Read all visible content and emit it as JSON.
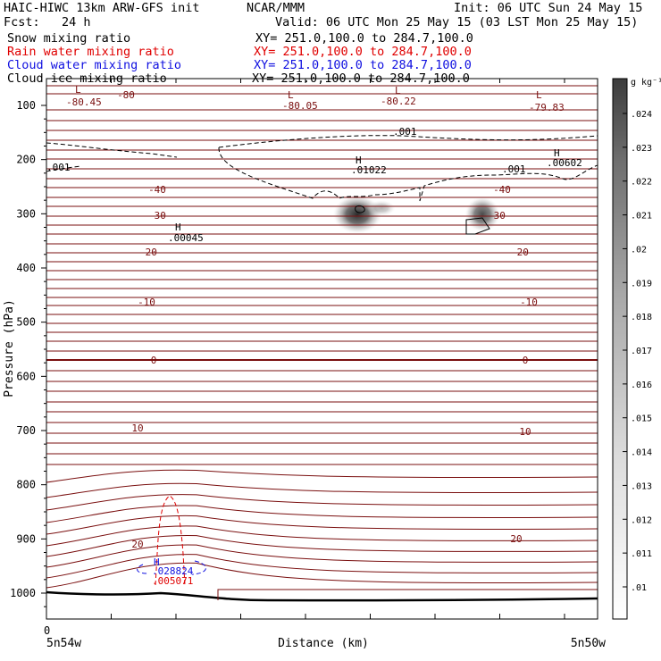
{
  "header": {
    "model": "HAIC-HIWC 13km ARW-GFS init",
    "org": "NCAR/MMM",
    "init": "Init: 06 UTC Sun 24 May 15",
    "fcst": "Fcst:   24 h",
    "valid": "Valid: 06 UTC Mon 25 May 15 (03 LST Mon 25 May 15)"
  },
  "fields": [
    {
      "label": "Snow mixing ratio",
      "xy": "XY= 251.0,100.0 to 284.7,100.0",
      "color": "#000000"
    },
    {
      "label": "Rain water mixing ratio",
      "xy": "XY= 251.0,100.0 to 284.7,100.0",
      "color": "#e00000"
    },
    {
      "label": "Cloud water mixing ratio",
      "xy": "XY= 251.0,100.0 to 284.7,100.0",
      "color": "#1010e0"
    },
    {
      "label": "Cloud ice mixing ratio",
      "xy": "XY= 251.0,100.0 to 284.7,100.0",
      "color": "#000000"
    }
  ],
  "chart_data": {
    "type": "contour",
    "ylabel": "Pressure (hPa)",
    "xlabel": "Distance (km)",
    "x_left_label": "5n54w",
    "x_right_label": "5n50w",
    "x_tick_zero": "0",
    "y_ticks": [
      100,
      200,
      300,
      400,
      500,
      600,
      700,
      800,
      900,
      1000
    ],
    "colorbar": {
      "unit": "g kg⁻¹",
      "levels": [
        ".01",
        ".011",
        ".012",
        ".013",
        ".014",
        ".015",
        ".016",
        ".017",
        ".018",
        ".019",
        ".02",
        ".021",
        ".022",
        ".023",
        ".024"
      ]
    },
    "temperature_labels": [
      "-80",
      "-40",
      "-30",
      "-20",
      "-10",
      "0",
      "10",
      "20"
    ],
    "extrema": [
      {
        "type": "L",
        "value": "-80.45"
      },
      {
        "type": "L",
        "value": "-80.05"
      },
      {
        "type": "L",
        "value": "-80.22"
      },
      {
        "type": "L",
        "value": "-79.83"
      },
      {
        "type": "H",
        "value": ".01022"
      },
      {
        "type": "H",
        "value": ".00602"
      },
      {
        "type": "H",
        "value": ".00045"
      },
      {
        "type": "H",
        "value": ".028824"
      },
      {
        "type": "H",
        "value": ".005071"
      }
    ],
    "contour_labels": [
      ".001"
    ]
  }
}
